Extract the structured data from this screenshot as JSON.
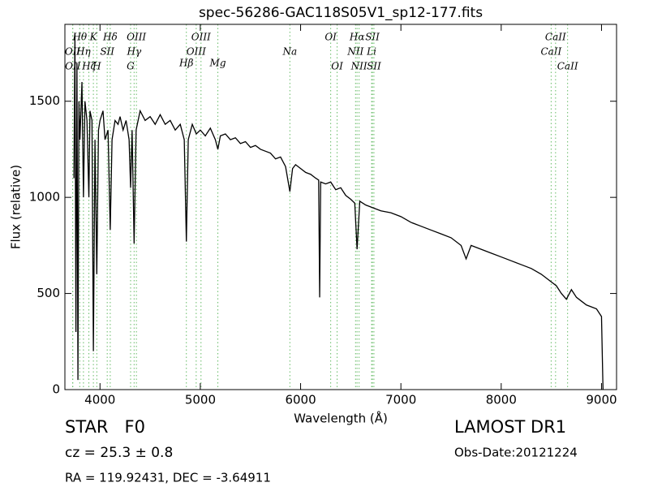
{
  "chart_data": {
    "type": "line",
    "title": "spec-56286-GAC118S05V1_sp12-177.fits",
    "x_label": "Wavelength (Å)",
    "y_label": "Flux (relative)",
    "xlim": [
      3650,
      9150
    ],
    "ylim": [
      0,
      1900
    ],
    "xticks": [
      4000,
      5000,
      6000,
      7000,
      8000,
      9000
    ],
    "yticks": [
      0,
      500,
      1000,
      1500
    ],
    "x": [
      3740,
      3750,
      3760,
      3770,
      3780,
      3790,
      3800,
      3820,
      3835,
      3850,
      3870,
      3889,
      3900,
      3920,
      3934,
      3950,
      3968,
      3985,
      4000,
      4030,
      4050,
      4080,
      4102,
      4120,
      4150,
      4180,
      4200,
      4230,
      4260,
      4290,
      4305,
      4320,
      4340,
      4360,
      4400,
      4450,
      4500,
      4550,
      4600,
      4650,
      4700,
      4750,
      4800,
      4840,
      4861,
      4880,
      4920,
      4960,
      5000,
      5050,
      5100,
      5150,
      5175,
      5200,
      5250,
      5300,
      5350,
      5400,
      5450,
      5500,
      5550,
      5600,
      5650,
      5700,
      5750,
      5800,
      5850,
      5893,
      5920,
      5950,
      6000,
      6050,
      6100,
      6150,
      6180,
      6190,
      6200,
      6250,
      6300,
      6350,
      6400,
      6450,
      6500,
      6540,
      6563,
      6590,
      6650,
      6700,
      6750,
      6800,
      6900,
      7000,
      7100,
      7200,
      7300,
      7400,
      7500,
      7600,
      7650,
      7700,
      7800,
      7900,
      8000,
      8100,
      8200,
      8300,
      8400,
      8500,
      8550,
      8600,
      8650,
      8700,
      8750,
      8800,
      8850,
      8900,
      8950,
      9000,
      9015
    ],
    "series": [
      {
        "name": "flux",
        "color": "#000000",
        "values": [
          1100,
          1850,
          300,
          1700,
          50,
          1500,
          1300,
          1600,
          1000,
          1500,
          1400,
          1000,
          1450,
          1400,
          200,
          1300,
          600,
          1350,
          1400,
          1450,
          1300,
          1350,
          830,
          1300,
          1400,
          1380,
          1420,
          1350,
          1400,
          1300,
          1050,
          1350,
          760,
          1350,
          1450,
          1400,
          1420,
          1380,
          1430,
          1380,
          1400,
          1350,
          1380,
          1300,
          770,
          1300,
          1380,
          1330,
          1350,
          1320,
          1360,
          1300,
          1250,
          1320,
          1330,
          1300,
          1310,
          1280,
          1290,
          1260,
          1270,
          1250,
          1240,
          1230,
          1200,
          1210,
          1160,
          1030,
          1150,
          1170,
          1150,
          1130,
          1120,
          1100,
          1090,
          480,
          1080,
          1070,
          1080,
          1040,
          1050,
          1010,
          990,
          970,
          730,
          980,
          960,
          950,
          940,
          930,
          920,
          900,
          870,
          850,
          830,
          810,
          790,
          750,
          680,
          750,
          730,
          710,
          690,
          670,
          650,
          630,
          600,
          560,
          540,
          500,
          470,
          520,
          480,
          460,
          440,
          430,
          420,
          380,
          0
        ]
      }
    ],
    "line_color": "#66bb66",
    "spectral_lines": [
      {
        "label": "OII",
        "x": 3727
      },
      {
        "label": "OII",
        "x": 3729
      },
      {
        "label": "Hθ",
        "x": 3798
      },
      {
        "label": "Hη",
        "x": 3835
      },
      {
        "label": "Hζ",
        "x": 3889
      },
      {
        "label": "K",
        "x": 3934
      },
      {
        "label": "H",
        "x": 3968
      },
      {
        "label": "SII",
        "x": 4072
      },
      {
        "label": "Hδ",
        "x": 4102
      },
      {
        "label": "G",
        "x": 4305
      },
      {
        "label": "Hγ",
        "x": 4340
      },
      {
        "label": "OIII",
        "x": 4363
      },
      {
        "label": "Hβ",
        "x": 4861
      },
      {
        "label": "OIII",
        "x": 4959
      },
      {
        "label": "OIII",
        "x": 5007
      },
      {
        "label": "Mg",
        "x": 5175
      },
      {
        "label": "Na",
        "x": 5893
      },
      {
        "label": "OI",
        "x": 6300
      },
      {
        "label": "OI",
        "x": 6364
      },
      {
        "label": "NII",
        "x": 6548
      },
      {
        "label": "Hα",
        "x": 6563
      },
      {
        "label": "NII",
        "x": 6583
      },
      {
        "label": "Li",
        "x": 6708
      },
      {
        "label": "SII",
        "x": 6716
      },
      {
        "label": "SII",
        "x": 6731
      },
      {
        "label": "CaII",
        "x": 8498
      },
      {
        "label": "CaII",
        "x": 8542
      },
      {
        "label": "CaII",
        "x": 8662
      }
    ],
    "object_class": "STAR   F0",
    "redshift": "cz = 25.3 ± 0.8",
    "coords": "RA = 119.92431, DEC = -3.64911",
    "survey": "LAMOST DR1",
    "obs_date": "Obs-Date:20121224"
  }
}
